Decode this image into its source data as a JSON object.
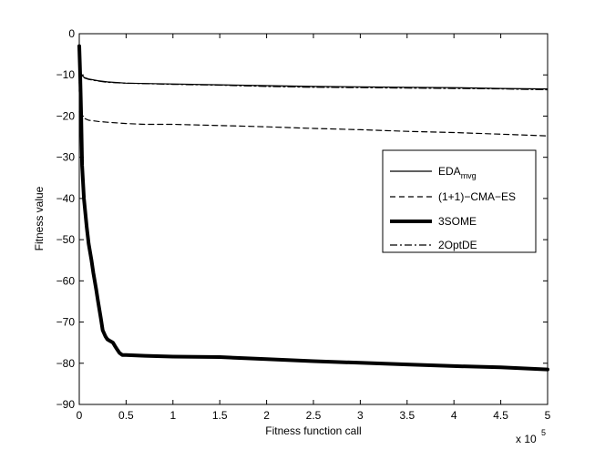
{
  "chart_data": {
    "type": "line",
    "title": "",
    "xlabel": "Fitness function call",
    "ylabel": "Fitness value",
    "x_multiplier_label": {
      "base": "x 10",
      "exponent": "5"
    },
    "xlim": [
      0,
      5
    ],
    "ylim": [
      -90,
      0
    ],
    "x_ticks": [
      0,
      0.5,
      1,
      1.5,
      2,
      2.5,
      3,
      3.5,
      4,
      4.5,
      5
    ],
    "x_tick_labels": [
      "0",
      "0.5",
      "1",
      "1.5",
      "2",
      "2.5",
      "3",
      "3.5",
      "4",
      "4.5",
      "5"
    ],
    "y_ticks": [
      0,
      -10,
      -20,
      -30,
      -40,
      -50,
      -60,
      -70,
      -80,
      -90
    ],
    "y_tick_labels": [
      "0",
      "−10",
      "−20",
      "−30",
      "−40",
      "−50",
      "−60",
      "−70",
      "−80",
      "−90"
    ],
    "grid": false,
    "legend_placement": "right-center",
    "series": [
      {
        "name": "EDA",
        "name_subscript": "mvg",
        "style": "solid",
        "color": "#000000",
        "points": [
          [
            0.0,
            -14
          ],
          [
            0.005,
            -10
          ],
          [
            0.02,
            -9.8
          ],
          [
            0.05,
            -10.6
          ],
          [
            0.1,
            -11.0
          ],
          [
            0.2,
            -11.4
          ],
          [
            0.3,
            -11.7
          ],
          [
            0.5,
            -12.0
          ],
          [
            1.0,
            -12.2
          ],
          [
            1.5,
            -12.4
          ],
          [
            2.0,
            -12.6
          ],
          [
            2.5,
            -12.8
          ],
          [
            3.0,
            -12.9
          ],
          [
            3.5,
            -13.0
          ],
          [
            4.0,
            -13.1
          ],
          [
            4.5,
            -13.3
          ],
          [
            5.0,
            -13.4
          ]
        ]
      },
      {
        "name": "(1+1)−CMA−ES",
        "style": "dashed",
        "color": "#000000",
        "points": [
          [
            0.0,
            -19
          ],
          [
            0.01,
            -19.5
          ],
          [
            0.05,
            -20.5
          ],
          [
            0.1,
            -21.0
          ],
          [
            0.2,
            -21.3
          ],
          [
            0.3,
            -21.5
          ],
          [
            0.5,
            -21.8
          ],
          [
            0.7,
            -22.0
          ],
          [
            1.0,
            -22.0
          ],
          [
            1.5,
            -22.3
          ],
          [
            2.0,
            -22.6
          ],
          [
            2.5,
            -23.0
          ],
          [
            3.0,
            -23.3
          ],
          [
            3.5,
            -23.7
          ],
          [
            4.0,
            -24.0
          ],
          [
            4.5,
            -24.4
          ],
          [
            5.0,
            -24.8
          ]
        ]
      },
      {
        "name": "3SOME",
        "style": "thick",
        "color": "#000000",
        "points": [
          [
            0.0,
            -3.0
          ],
          [
            0.01,
            -10
          ],
          [
            0.02,
            -20
          ],
          [
            0.03,
            -32
          ],
          [
            0.05,
            -40
          ],
          [
            0.08,
            -47
          ],
          [
            0.1,
            -51
          ],
          [
            0.13,
            -55
          ],
          [
            0.15,
            -58
          ],
          [
            0.18,
            -62
          ],
          [
            0.2,
            -65
          ],
          [
            0.23,
            -69
          ],
          [
            0.25,
            -72
          ],
          [
            0.28,
            -73.5
          ],
          [
            0.3,
            -74.2
          ],
          [
            0.33,
            -74.6
          ],
          [
            0.36,
            -75.0
          ],
          [
            0.38,
            -75.8
          ],
          [
            0.4,
            -76.5
          ],
          [
            0.43,
            -77.5
          ],
          [
            0.46,
            -78.0
          ],
          [
            0.5,
            -78.0
          ],
          [
            0.7,
            -78.2
          ],
          [
            1.0,
            -78.4
          ],
          [
            1.5,
            -78.5
          ],
          [
            2.0,
            -79.0
          ],
          [
            2.5,
            -79.5
          ],
          [
            3.0,
            -79.9
          ],
          [
            3.5,
            -80.3
          ],
          [
            4.0,
            -80.7
          ],
          [
            4.5,
            -81.0
          ],
          [
            5.0,
            -81.5
          ]
        ]
      },
      {
        "name": "2OptDE",
        "style": "dashdot",
        "color": "#000000",
        "points": [
          [
            0.0,
            -12
          ],
          [
            0.005,
            -9.9
          ],
          [
            0.02,
            -10.0
          ],
          [
            0.05,
            -10.7
          ],
          [
            0.1,
            -11.1
          ],
          [
            0.2,
            -11.5
          ],
          [
            0.3,
            -11.8
          ],
          [
            0.5,
            -12.0
          ],
          [
            1.0,
            -12.3
          ],
          [
            1.5,
            -12.5
          ],
          [
            2.0,
            -12.8
          ],
          [
            2.5,
            -13.0
          ],
          [
            3.0,
            -13.1
          ],
          [
            3.5,
            -13.2
          ],
          [
            4.0,
            -13.3
          ],
          [
            4.5,
            -13.4
          ],
          [
            5.0,
            -13.6
          ]
        ]
      }
    ]
  }
}
